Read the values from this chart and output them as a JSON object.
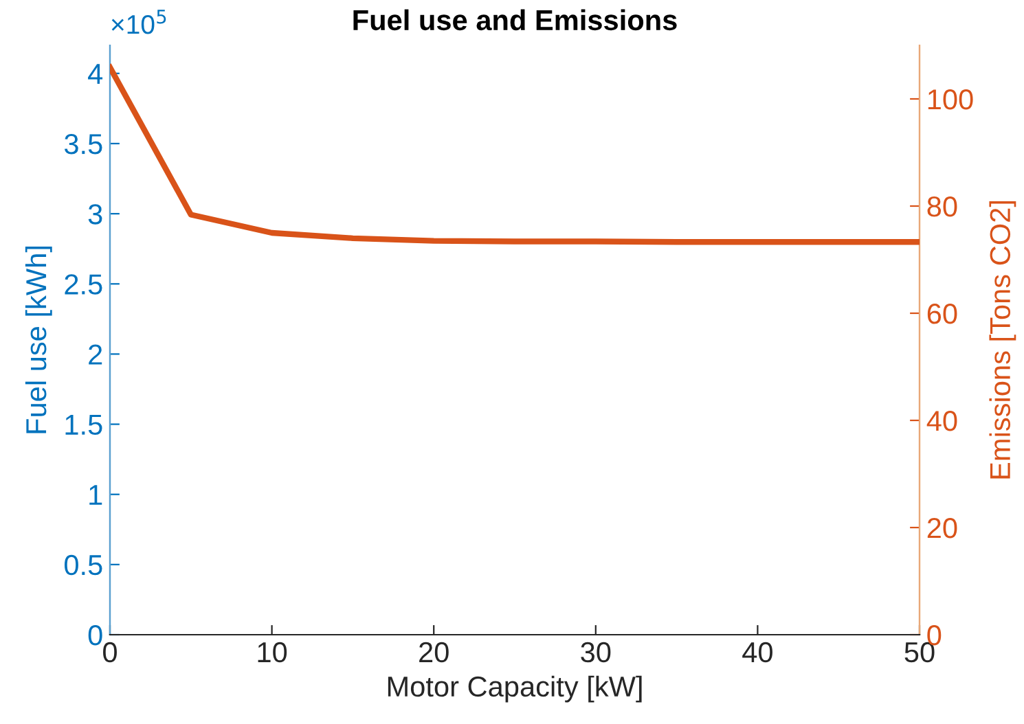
{
  "chart_data": {
    "type": "line",
    "title": "Fuel use and Emissions",
    "xlabel": "Motor Capacity [kW]",
    "ylabel": "Fuel use [kWh]",
    "y2label": "Emissions [Tons CO2]",
    "x": [
      0,
      5,
      10,
      15,
      20,
      25,
      30,
      35,
      40,
      45,
      50
    ],
    "series": [
      {
        "color": "#d95319",
        "axis": "y2",
        "values": [
          105.9,
          78.4,
          75.0,
          74.0,
          73.5,
          73.4,
          73.4,
          73.3,
          73.3,
          73.3,
          73.3
        ]
      }
    ],
    "xlim": [
      0,
      50
    ],
    "xticks": [
      0,
      10,
      20,
      30,
      40,
      50
    ],
    "ylim": [
      0,
      4.2
    ],
    "yticks": [
      0,
      0.5,
      1,
      1.5,
      2,
      2.5,
      3,
      3.5,
      4
    ],
    "y2lim": [
      0,
      110
    ],
    "y2ticks": [
      0,
      20,
      40,
      60,
      80,
      100
    ],
    "annotations": [
      "×10$^{5}$"
    ],
    "grid": false,
    "legend": false
  }
}
